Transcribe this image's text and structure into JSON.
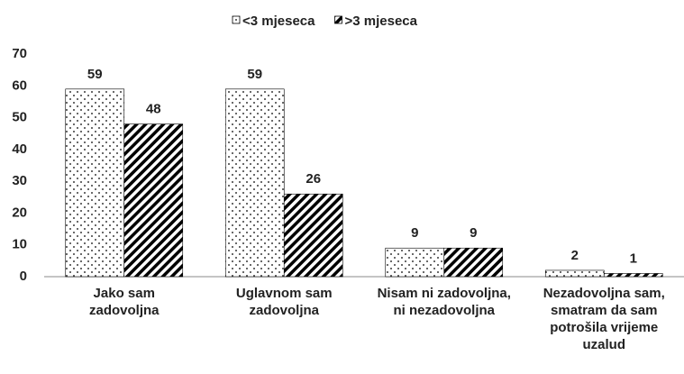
{
  "chart_data": {
    "type": "bar",
    "categories": [
      "Jako sam zadovoljna",
      "Uglavnom sam zadovoljna",
      "Nisam ni zadovoljna, ni nezadovoljna",
      "Nezadovoljna sam, smatram da sam potrošila vrijeme uzalud"
    ],
    "series": [
      {
        "name": "<3 mjeseca",
        "pattern": "dots",
        "color": "#000000",
        "values": [
          59,
          59,
          9,
          2
        ]
      },
      {
        "name": ">3 mjeseca",
        "pattern": "stripes",
        "color": "#000000",
        "values": [
          48,
          26,
          9,
          1
        ]
      }
    ],
    "ylim": [
      0,
      70
    ],
    "yticks": [
      0,
      10,
      20,
      30,
      40,
      50,
      60,
      70
    ],
    "grid": false,
    "legend": "top",
    "data_labels": true
  }
}
